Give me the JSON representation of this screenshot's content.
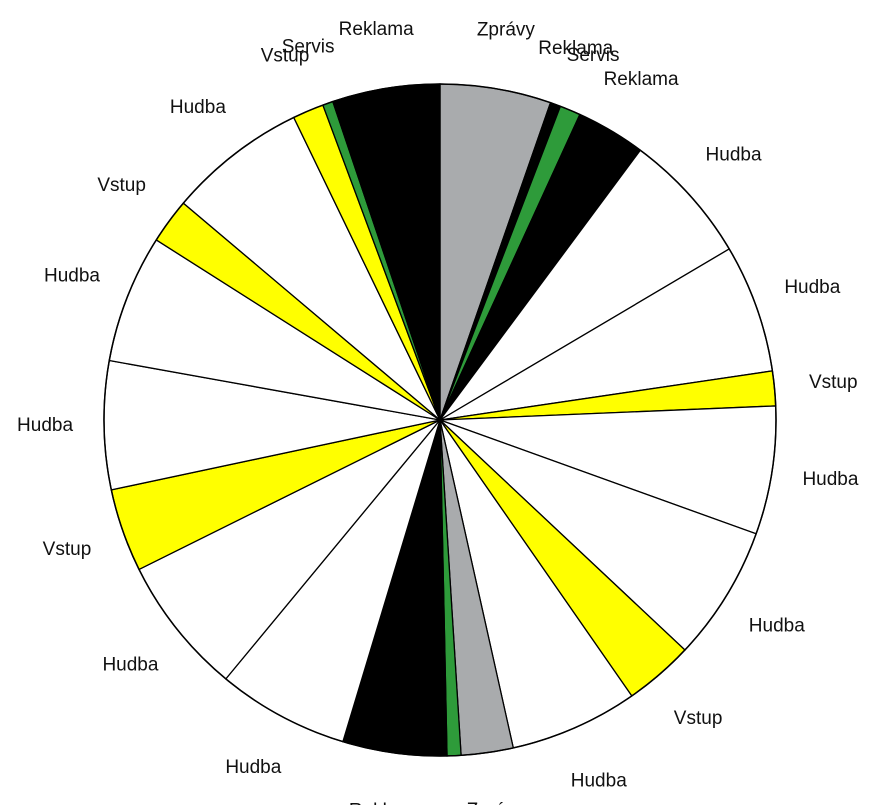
{
  "chart_data": {
    "type": "pie",
    "categories": [
      "Zprávy",
      "Reklama",
      "Servis",
      "Reklama",
      "Hudba",
      "Hudba",
      "Vstup",
      "Hudba",
      "Hudba",
      "Vstup",
      "Hudba",
      "Zprávy",
      "Servis",
      "Reklama",
      "Hudba",
      "Hudba",
      "Vstup",
      "Hudba",
      "Hudba",
      "Vstup",
      "Hudba",
      "Vstup",
      "Servis",
      "Reklama"
    ],
    "values": [
      3.2,
      0.3,
      0.6,
      2,
      3.8,
      3.7,
      1,
      3.7,
      3.9,
      2,
      3.7,
      1.5,
      0.4,
      3,
      3.8,
      4,
      2.4,
      3.7,
      3.7,
      1.3,
      4,
      0.9,
      0.3,
      3.1
    ],
    "colors": [
      "#a9abad",
      "#000000",
      "#2e9b3a",
      "#000000",
      "#ffffff",
      "#ffffff",
      "#ffff00",
      "#ffffff",
      "#ffffff",
      "#ffff00",
      "#ffffff",
      "#a9abad",
      "#2e9b3a",
      "#000000",
      "#ffffff",
      "#ffffff",
      "#ffff00",
      "#ffffff",
      "#ffffff",
      "#ffff00",
      "#ffffff",
      "#ffff00",
      "#2e9b3a",
      "#000000"
    ]
  }
}
